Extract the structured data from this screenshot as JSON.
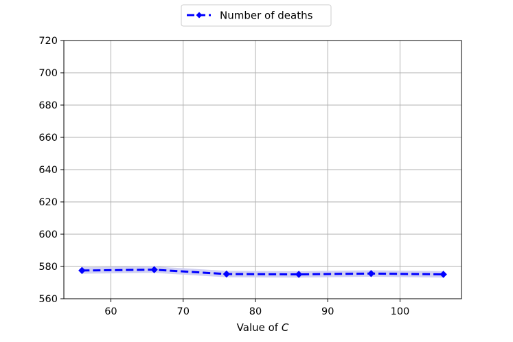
{
  "chart_data": {
    "type": "line",
    "title": "",
    "xlabel": "Value of ",
    "xlabel_var": "C",
    "ylabel": "",
    "xlim": [
      53.5,
      108.5
    ],
    "ylim": [
      560,
      720
    ],
    "x_ticks": [
      "60",
      "70",
      "80",
      "90",
      "100"
    ],
    "y_ticks": [
      "560",
      "580",
      "600",
      "620",
      "640",
      "660",
      "680",
      "700",
      "720"
    ],
    "grid": true,
    "legend_position": "top-center",
    "x": [
      56,
      66,
      76,
      86,
      96,
      106
    ],
    "series": [
      {
        "name": "Number of deaths",
        "values": [
          577.5,
          578,
          575.3,
          575.1,
          575.6,
          575.1
        ],
        "band_low": [
          575.5,
          576,
          573.3,
          573.1,
          573.6,
          573.1
        ],
        "band_high": [
          579.5,
          580,
          577.3,
          577.1,
          577.6,
          577.1
        ],
        "color": "#0000ff",
        "band_color": "#ccccf2",
        "line_style": "dashed",
        "marker": "diamond"
      }
    ]
  }
}
